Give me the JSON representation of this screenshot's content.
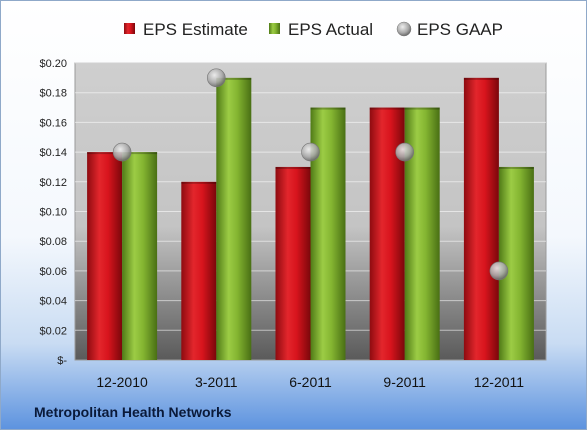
{
  "chart_data": {
    "type": "bar",
    "title": "",
    "categories": [
      "12-2010",
      "3-2011",
      "6-2011",
      "9-2011",
      "12-2011"
    ],
    "series": [
      {
        "name": "EPS Estimate",
        "kind": "bar",
        "color": "#d8141d",
        "values": [
          0.14,
          0.12,
          0.13,
          0.17,
          0.19
        ]
      },
      {
        "name": "EPS Actual",
        "kind": "bar",
        "color": "#84b531",
        "values": [
          0.14,
          0.19,
          0.17,
          0.17,
          0.13
        ]
      },
      {
        "name": "EPS GAAP",
        "kind": "marker",
        "color": "#a9a9a9",
        "values": [
          0.14,
          0.19,
          0.14,
          0.14,
          0.06
        ]
      }
    ],
    "ylim": [
      0,
      0.2
    ],
    "yticks": [
      0,
      0.02,
      0.04,
      0.06,
      0.08,
      0.1,
      0.12,
      0.14,
      0.16,
      0.18,
      0.2
    ],
    "ytick_labels": [
      "$-",
      "$0.02",
      "$0.04",
      "$0.06",
      "$0.08",
      "$0.10",
      "$0.12",
      "$0.14",
      "$0.16",
      "$0.18",
      "$0.20"
    ],
    "grid": true,
    "legend_position": "top"
  },
  "footer": {
    "company": "Metropolitan Health Networks"
  },
  "colors": {
    "plot_top": "#cfcfcf",
    "plot_bottom": "#5a5a5a",
    "frame_bottom": "#5d93df"
  }
}
